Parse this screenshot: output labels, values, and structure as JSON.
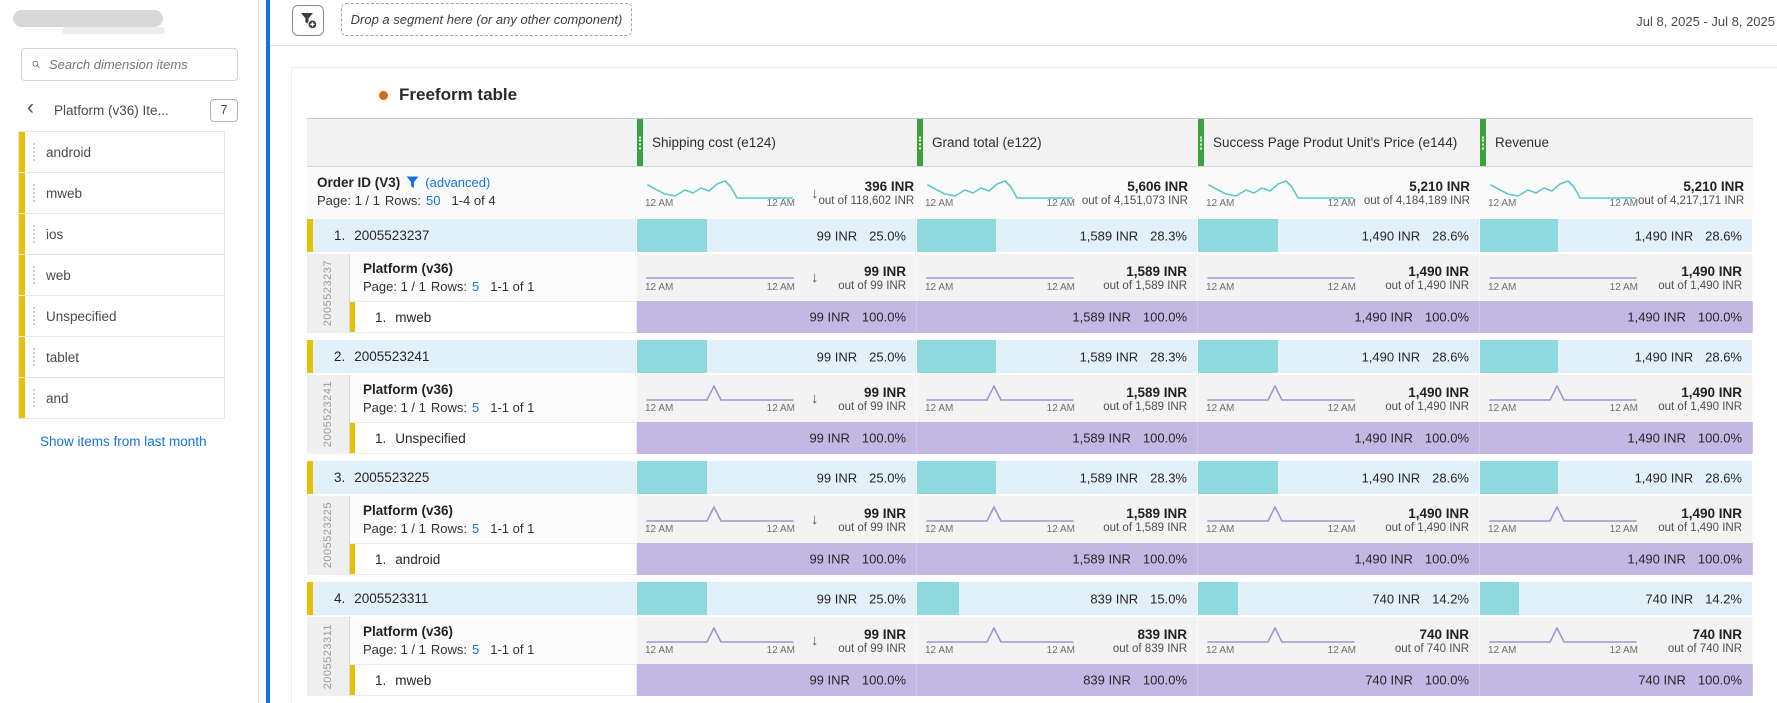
{
  "colors": {
    "accent_blue": "#1473e6",
    "link_blue": "#1473e6",
    "item_yellow": "#e7c108",
    "column_green": "#3aa33f",
    "row_blue_bg": "#e2f0fa",
    "bar_teal": "#8ed9dd",
    "sub_purple_bg": "#c3b8e4",
    "spark_teal": "#5ec8cd",
    "spark_purple": "#a095d5",
    "title_dot_orange": "#d96a0b"
  },
  "sidebar": {
    "search_placeholder": "Search dimension items",
    "panel_title": "Platform (v36) Ite...",
    "panel_count": "7",
    "items": [
      "android",
      "mweb",
      "ios",
      "web",
      "Unspecified",
      "tablet",
      "and"
    ],
    "show_link": "Show items from last month"
  },
  "topbar": {
    "drop_zone": "Drop a segment here (or any other component)",
    "date_range": "Jul 8, 2025 - Jul 8, 2025"
  },
  "panel_title": "Freeform table",
  "table": {
    "columns": [
      "Shipping cost (e124)",
      "Grand total (e122)",
      "Success Page Produt Unit's Price (e144)",
      "Revenue"
    ],
    "time_start": "12 AM",
    "time_end": "12 AM",
    "row_header": {
      "dimension": "Order ID (V3)",
      "advanced_label": "(advanced)",
      "page_label": "Page: 1 / 1",
      "rows_label": "Rows:",
      "rows_value": "50",
      "range": "1-4 of 4"
    },
    "totals": [
      {
        "value": "396 INR",
        "out_of": "out of 118,602 INR"
      },
      {
        "value": "5,606 INR",
        "out_of": "out of 4,151,073 INR"
      },
      {
        "value": "5,210 INR",
        "out_of": "out of 4,184,189 INR"
      },
      {
        "value": "5,210 INR",
        "out_of": "out of 4,217,171 INR"
      }
    ],
    "groups": [
      {
        "num": "1.",
        "order_id": "2005523237",
        "cells": [
          {
            "value": "99 INR",
            "pct": "25.0%",
            "bar": 25.0
          },
          {
            "value": "1,589 INR",
            "pct": "28.3%",
            "bar": 28.3
          },
          {
            "value": "1,490 INR",
            "pct": "28.6%",
            "bar": 28.6
          },
          {
            "value": "1,490 INR",
            "pct": "28.6%",
            "bar": 28.6
          }
        ],
        "nested": {
          "title": "Platform (v36)",
          "page_label": "Page: 1 / 1",
          "rows_label": "Rows:",
          "rows_value": "5",
          "range": "1-1 of 1",
          "spark": "flat",
          "totals": [
            {
              "value": "99 INR",
              "out_of": "out of 99 INR"
            },
            {
              "value": "1,589 INR",
              "out_of": "out of 1,589 INR"
            },
            {
              "value": "1,490 INR",
              "out_of": "out of 1,490 INR"
            },
            {
              "value": "1,490 INR",
              "out_of": "out of 1,490 INR"
            }
          ]
        },
        "sub": {
          "num": "1.",
          "label": "mweb",
          "cells": [
            {
              "value": "99 INR",
              "pct": "100.0%"
            },
            {
              "value": "1,589 INR",
              "pct": "100.0%"
            },
            {
              "value": "1,490 INR",
              "pct": "100.0%"
            },
            {
              "value": "1,490 INR",
              "pct": "100.0%"
            }
          ]
        }
      },
      {
        "num": "2.",
        "order_id": "2005523241",
        "cells": [
          {
            "value": "99 INR",
            "pct": "25.0%",
            "bar": 25.0
          },
          {
            "value": "1,589 INR",
            "pct": "28.3%",
            "bar": 28.3
          },
          {
            "value": "1,490 INR",
            "pct": "28.6%",
            "bar": 28.6
          },
          {
            "value": "1,490 INR",
            "pct": "28.6%",
            "bar": 28.6
          }
        ],
        "nested": {
          "title": "Platform (v36)",
          "page_label": "Page: 1 / 1",
          "rows_label": "Rows:",
          "rows_value": "5",
          "range": "1-1 of 1",
          "spark": "spike",
          "totals": [
            {
              "value": "99 INR",
              "out_of": "out of 99 INR"
            },
            {
              "value": "1,589 INR",
              "out_of": "out of 1,589 INR"
            },
            {
              "value": "1,490 INR",
              "out_of": "out of 1,490 INR"
            },
            {
              "value": "1,490 INR",
              "out_of": "out of 1,490 INR"
            }
          ]
        },
        "sub": {
          "num": "1.",
          "label": "Unspecified",
          "cells": [
            {
              "value": "99 INR",
              "pct": "100.0%"
            },
            {
              "value": "1,589 INR",
              "pct": "100.0%"
            },
            {
              "value": "1,490 INR",
              "pct": "100.0%"
            },
            {
              "value": "1,490 INR",
              "pct": "100.0%"
            }
          ]
        }
      },
      {
        "num": "3.",
        "order_id": "2005523225",
        "cells": [
          {
            "value": "99 INR",
            "pct": "25.0%",
            "bar": 25.0
          },
          {
            "value": "1,589 INR",
            "pct": "28.3%",
            "bar": 28.3
          },
          {
            "value": "1,490 INR",
            "pct": "28.6%",
            "bar": 28.6
          },
          {
            "value": "1,490 INR",
            "pct": "28.6%",
            "bar": 28.6
          }
        ],
        "nested": {
          "title": "Platform (v36)",
          "page_label": "Page: 1 / 1",
          "rows_label": "Rows:",
          "rows_value": "5",
          "range": "1-1 of 1",
          "spark": "spike",
          "totals": [
            {
              "value": "99 INR",
              "out_of": "out of 99 INR"
            },
            {
              "value": "1,589 INR",
              "out_of": "out of 1,589 INR"
            },
            {
              "value": "1,490 INR",
              "out_of": "out of 1,490 INR"
            },
            {
              "value": "1,490 INR",
              "out_of": "out of 1,490 INR"
            }
          ]
        },
        "sub": {
          "num": "1.",
          "label": "android",
          "cells": [
            {
              "value": "99 INR",
              "pct": "100.0%"
            },
            {
              "value": "1,589 INR",
              "pct": "100.0%"
            },
            {
              "value": "1,490 INR",
              "pct": "100.0%"
            },
            {
              "value": "1,490 INR",
              "pct": "100.0%"
            }
          ]
        }
      },
      {
        "num": "4.",
        "order_id": "2005523311",
        "cells": [
          {
            "value": "99 INR",
            "pct": "25.0%",
            "bar": 25.0
          },
          {
            "value": "839 INR",
            "pct": "15.0%",
            "bar": 15.0
          },
          {
            "value": "740 INR",
            "pct": "14.2%",
            "bar": 14.2
          },
          {
            "value": "740 INR",
            "pct": "14.2%",
            "bar": 14.2
          }
        ],
        "nested": {
          "title": "Platform (v36)",
          "page_label": "Page: 1 / 1",
          "rows_label": "Rows:",
          "rows_value": "5",
          "range": "1-1 of 1",
          "spark": "spike",
          "totals": [
            {
              "value": "99 INR",
              "out_of": "out of 99 INR"
            },
            {
              "value": "839 INR",
              "out_of": "out of 839 INR"
            },
            {
              "value": "740 INR",
              "out_of": "out of 740 INR"
            },
            {
              "value": "740 INR",
              "out_of": "out of 740 INR"
            }
          ]
        },
        "sub": {
          "num": "1.",
          "label": "mweb",
          "cells": [
            {
              "value": "99 INR",
              "pct": "100.0%"
            },
            {
              "value": "839 INR",
              "pct": "100.0%"
            },
            {
              "value": "740 INR",
              "pct": "100.0%"
            },
            {
              "value": "740 INR",
              "pct": "100.0%"
            }
          ]
        }
      }
    ]
  }
}
